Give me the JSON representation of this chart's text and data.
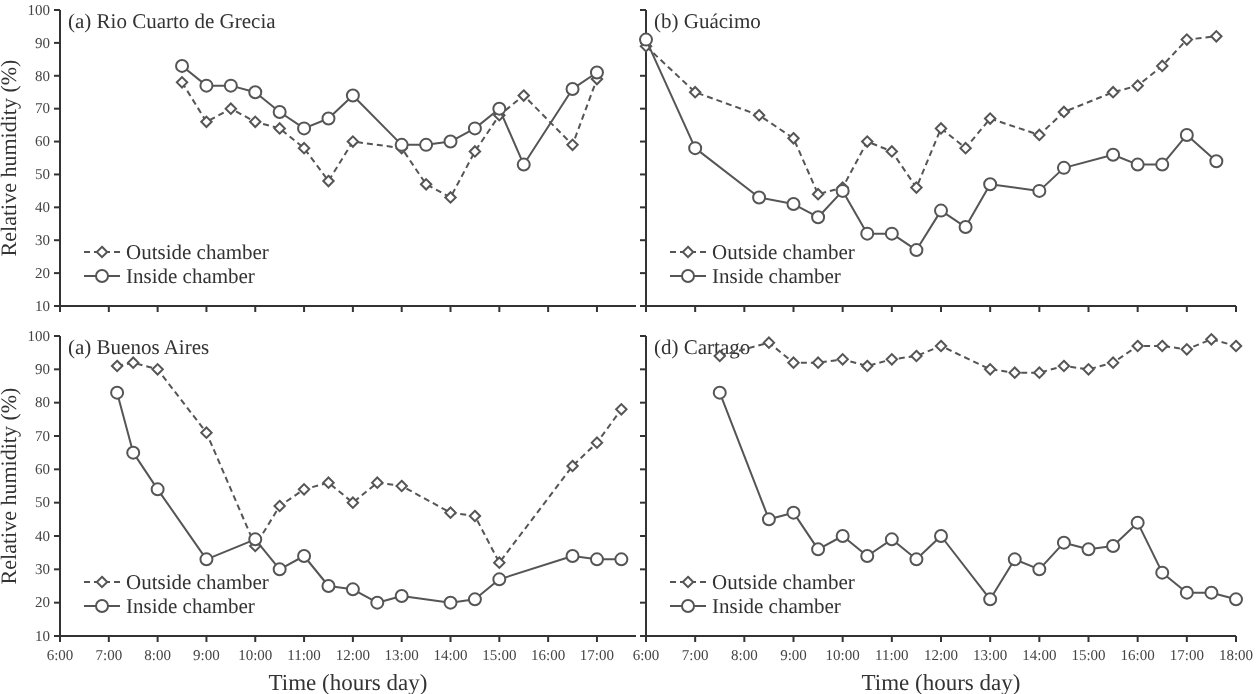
{
  "chart_data": [
    {
      "type": "line",
      "title": "(a) Rio Cuarto de Grecia",
      "ylabel": "Relative humidity (%)",
      "xlim": [
        6,
        17.8
      ],
      "ylim": [
        10,
        100
      ],
      "yticks": [
        10,
        20,
        30,
        40,
        50,
        60,
        70,
        80,
        90,
        100
      ],
      "xticks": [
        6,
        7,
        8,
        9,
        10,
        11,
        12,
        13,
        14,
        15,
        16,
        17
      ],
      "tick_labels": "y",
      "legend": "bottom left",
      "grid": false,
      "series": [
        {
          "name": "Outside chamber",
          "color": "#555555",
          "marker": "diamond",
          "line_style": "dashed",
          "x": [
            8.5,
            9,
            9.5,
            10,
            10.5,
            11,
            11.5,
            12,
            13,
            13.5,
            14,
            14.5,
            15,
            15.5,
            16.5,
            17
          ],
          "values": [
            78,
            66,
            70,
            66,
            64,
            58,
            48,
            60,
            58,
            47,
            43,
            57,
            68,
            74,
            59,
            79
          ]
        },
        {
          "name": "Inside chamber",
          "color": "#555555",
          "marker": "circle",
          "line_style": "solid",
          "x": [
            8.5,
            9,
            9.5,
            10,
            10.5,
            11,
            11.5,
            12,
            13,
            13.5,
            14,
            14.5,
            15,
            15.5,
            16.5,
            17
          ],
          "values": [
            83,
            77,
            77,
            75,
            69,
            64,
            67,
            74,
            59,
            59,
            60,
            64,
            70,
            53,
            76,
            81
          ]
        }
      ]
    },
    {
      "type": "line",
      "title": "(b) Guácimo",
      "xlim": [
        6,
        18
      ],
      "ylim": [
        10,
        100
      ],
      "yticks": [
        10,
        20,
        30,
        40,
        50,
        60,
        70,
        80,
        90,
        100
      ],
      "xticks": [
        6,
        7,
        8,
        9,
        10,
        11,
        12,
        13,
        14,
        15,
        16,
        17,
        18
      ],
      "tick_labels": false,
      "legend": "bottom left",
      "grid": false,
      "series": [
        {
          "name": "Outside chamber",
          "color": "#555555",
          "marker": "diamond",
          "line_style": "dashed",
          "x": [
            6,
            7,
            8.3,
            9,
            9.5,
            10,
            10.5,
            11,
            11.5,
            12,
            12.5,
            13,
            14,
            14.5,
            15.5,
            16,
            16.5,
            17,
            17.6
          ],
          "values": [
            89,
            75,
            68,
            61,
            44,
            46,
            60,
            57,
            46,
            64,
            58,
            67,
            62,
            69,
            75,
            77,
            83,
            91,
            92
          ]
        },
        {
          "name": "Inside chamber",
          "color": "#555555",
          "marker": "circle",
          "line_style": "solid",
          "x": [
            6,
            7,
            8.3,
            9,
            9.5,
            10,
            10.5,
            11,
            11.5,
            12,
            12.5,
            13,
            14,
            14.5,
            15.5,
            16,
            16.5,
            17,
            17.6
          ],
          "values": [
            91,
            58,
            43,
            41,
            37,
            45,
            32,
            32,
            27,
            39,
            34,
            47,
            45,
            52,
            56,
            53,
            53,
            62,
            54
          ]
        }
      ]
    },
    {
      "type": "line",
      "title": "(a) Buenos Aires",
      "ylabel": "Relative humidity (%)",
      "xlabel": "Time (hours day)",
      "xlim": [
        6,
        17.8
      ],
      "ylim": [
        10,
        100
      ],
      "yticks": [
        10,
        20,
        30,
        40,
        50,
        60,
        70,
        80,
        90,
        100
      ],
      "xticks": [
        {
          "value": 6,
          "label": "6:00"
        },
        {
          "value": 7,
          "label": "7:00"
        },
        {
          "value": 8,
          "label": "8:00"
        },
        {
          "value": 9,
          "label": "9:00"
        },
        {
          "value": 10,
          "label": "10:00"
        },
        {
          "value": 11,
          "label": "11:00"
        },
        {
          "value": 12,
          "label": "12:00"
        },
        {
          "value": 13,
          "label": "13:00"
        },
        {
          "value": 14,
          "label": "14:00"
        },
        {
          "value": 15,
          "label": "15:00"
        },
        {
          "value": 16,
          "label": "16:00"
        },
        {
          "value": 17,
          "label": "17:00"
        }
      ],
      "legend": "bottom left",
      "grid": false,
      "series": [
        {
          "name": "Outside chamber",
          "color": "#555555",
          "marker": "diamond",
          "line_style": "dashed",
          "x": [
            7.17,
            7.5,
            8,
            9,
            10,
            10.5,
            11,
            11.5,
            12,
            12.5,
            13,
            14,
            14.5,
            15,
            16.5,
            17,
            17.5
          ],
          "values": [
            91,
            92,
            90,
            71,
            37,
            49,
            54,
            56,
            50,
            56,
            55,
            47,
            46,
            32,
            61,
            68,
            78
          ]
        },
        {
          "name": "Inside chamber",
          "color": "#555555",
          "marker": "circle",
          "line_style": "solid",
          "x": [
            7.17,
            7.5,
            8,
            9,
            10,
            10.5,
            11,
            11.5,
            12,
            12.5,
            13,
            14,
            14.5,
            15,
            16.5,
            17,
            17.5
          ],
          "values": [
            83,
            65,
            54,
            33,
            39,
            30,
            34,
            25,
            24,
            20,
            22,
            20,
            21,
            27,
            34,
            33,
            33
          ]
        }
      ]
    },
    {
      "type": "line",
      "title": "(d) Cartago",
      "xlabel": "Time (hours day)",
      "xlim": [
        6,
        18
      ],
      "ylim": [
        10,
        100
      ],
      "yticks": [
        10,
        20,
        30,
        40,
        50,
        60,
        70,
        80,
        90,
        100
      ],
      "xticks": [
        {
          "value": 6,
          "label": "6:00"
        },
        {
          "value": 7,
          "label": "7:00"
        },
        {
          "value": 8,
          "label": "8:00"
        },
        {
          "value": 9,
          "label": "9:00"
        },
        {
          "value": 10,
          "label": "10:00"
        },
        {
          "value": 11,
          "label": "11:00"
        },
        {
          "value": 12,
          "label": "12:00"
        },
        {
          "value": 13,
          "label": "13:00"
        },
        {
          "value": 14,
          "label": "14:00"
        },
        {
          "value": 15,
          "label": "15:00"
        },
        {
          "value": 16,
          "label": "16:00"
        },
        {
          "value": 17,
          "label": "17:00"
        },
        {
          "value": 18,
          "label": "18:00"
        }
      ],
      "tick_labels": "x",
      "legend": "bottom left",
      "grid": false,
      "series": [
        {
          "name": "Outside chamber",
          "color": "#555555",
          "marker": "diamond",
          "line_style": "dashed",
          "x": [
            7.5,
            8.5,
            9,
            9.5,
            10,
            10.5,
            11,
            11.5,
            12,
            13,
            13.5,
            14,
            14.5,
            15,
            15.5,
            16,
            16.5,
            17,
            17.5,
            18
          ],
          "values": [
            94,
            98,
            92,
            92,
            93,
            91,
            93,
            94,
            97,
            90,
            89,
            89,
            91,
            90,
            92,
            97,
            97,
            96,
            99,
            97
          ]
        },
        {
          "name": "Inside chamber",
          "color": "#555555",
          "marker": "circle",
          "line_style": "solid",
          "x": [
            7.5,
            8.5,
            9,
            9.5,
            10,
            10.5,
            11,
            11.5,
            12,
            13,
            13.5,
            14,
            14.5,
            15,
            15.5,
            16,
            16.5,
            17,
            17.5,
            18
          ],
          "values": [
            83,
            45,
            47,
            36,
            40,
            34,
            39,
            33,
            40,
            21,
            33,
            30,
            38,
            36,
            37,
            44,
            29,
            23,
            23,
            21
          ]
        }
      ]
    }
  ]
}
